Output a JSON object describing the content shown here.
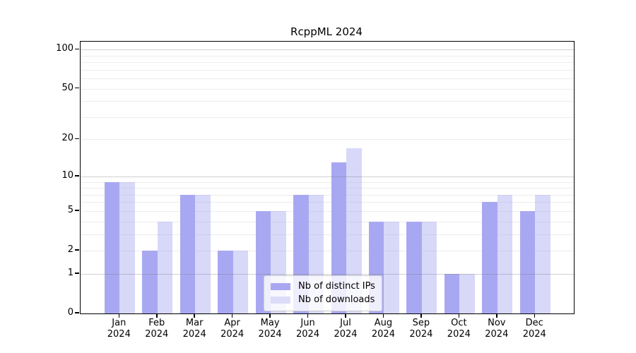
{
  "title": "RcppML 2024",
  "chart_data": {
    "type": "bar",
    "scale": "log1p",
    "grid": "on",
    "title": "RcppML 2024",
    "xlabel": "",
    "ylabel": "",
    "categories": [
      "Jan",
      "Feb",
      "Mar",
      "Apr",
      "May",
      "Jun",
      "Jul",
      "Aug",
      "Sep",
      "Oct",
      "Nov",
      "Dec"
    ],
    "category_year": "2024",
    "series": [
      {
        "name": "Nb of distinct IPs",
        "color": "#a8a8f2",
        "values": [
          9,
          2,
          7,
          2,
          5,
          7,
          13,
          4,
          4,
          1,
          6,
          5
        ]
      },
      {
        "name": "Nb of downloads",
        "color": "#dcdcf8",
        "values": [
          9,
          4,
          7,
          2,
          5,
          7,
          17,
          4,
          4,
          1,
          7,
          7
        ]
      }
    ],
    "ylim": [
      0,
      115
    ],
    "yticks": [
      0,
      1,
      2,
      5,
      10,
      20,
      50,
      100
    ],
    "gridlines_major": [
      1,
      10,
      100
    ],
    "gridlines_minor": [
      2,
      3,
      4,
      5,
      6,
      7,
      8,
      9,
      20,
      30,
      40,
      50,
      60,
      70,
      80,
      90
    ],
    "legend_position": "lower-center"
  }
}
